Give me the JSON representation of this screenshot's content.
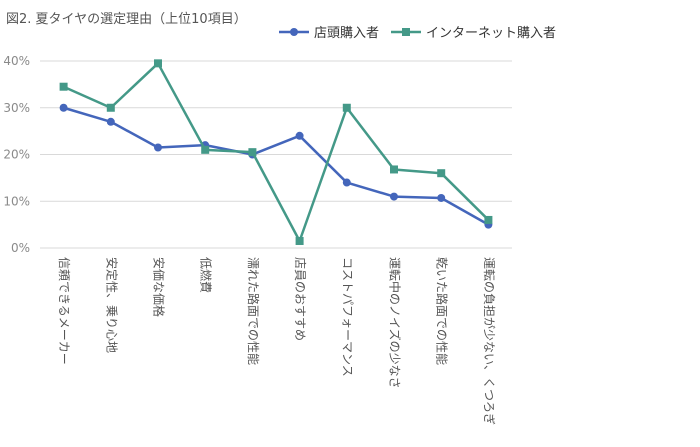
{
  "chart_data": {
    "type": "line",
    "title": "図2. 夏タイヤの選定理由（上位10項目）",
    "xlabel": "",
    "ylabel": "",
    "ylim": [
      0,
      40
    ],
    "yticks": [
      "0%",
      "10%",
      "20%",
      "30%",
      "40%"
    ],
    "grid": true,
    "legend_position": "top-right",
    "categories": [
      "信頼できるメーカー",
      "安定性、乗り心地",
      "安価な価格",
      "低燃費",
      "濡れた路面での性能",
      "店員のおすすめ",
      "コストパフォーマンス",
      "運転中のノイズの少なさ",
      "乾いた路面での性能",
      "運転の負担が少ない、くつろぎ"
    ],
    "series": [
      {
        "name": "店頭購入者",
        "marker": "circle",
        "color": "#4466bb",
        "values": [
          30,
          27,
          21.5,
          22,
          20,
          24,
          14,
          11,
          10.7,
          5
        ]
      },
      {
        "name": "インターネット購入者",
        "marker": "square",
        "color": "#449988",
        "values": [
          34.5,
          30,
          39.5,
          21,
          20.5,
          1.5,
          30,
          16.8,
          16,
          6
        ]
      }
    ]
  }
}
